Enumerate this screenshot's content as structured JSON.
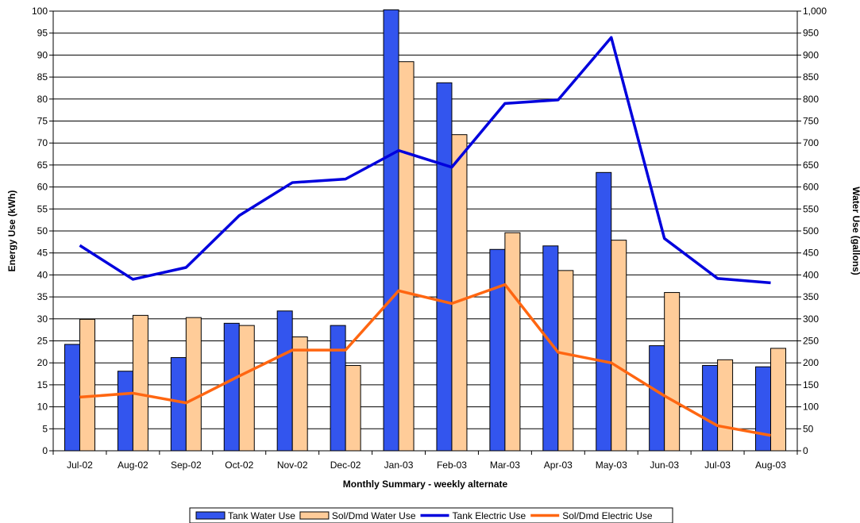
{
  "chart_data": {
    "type": "bar",
    "categories": [
      "Jul-02",
      "Aug-02",
      "Sep-02",
      "Oct-02",
      "Nov-02",
      "Dec-02",
      "Jan-03",
      "Feb-03",
      "Mar-03",
      "Apr-03",
      "May-03",
      "Jun-03",
      "Jul-03",
      "Aug-03"
    ],
    "xlabel": "Monthly Summary - weekly alternate",
    "ylabel_left": "Energy Use (kWh)",
    "ylabel_right": "Water Use (gallons)",
    "ylim_left": [
      0,
      100
    ],
    "ylim_right": [
      0,
      1000
    ],
    "yticks_left": [
      "0",
      "5",
      "10",
      "15",
      "20",
      "25",
      "30",
      "35",
      "40",
      "45",
      "50",
      "55",
      "60",
      "65",
      "70",
      "75",
      "80",
      "85",
      "90",
      "95",
      "100"
    ],
    "yticks_right": [
      "0",
      "50",
      "100",
      "150",
      "200",
      "250",
      "300",
      "350",
      "400",
      "450",
      "500",
      "550",
      "600",
      "650",
      "700",
      "750",
      "800",
      "850",
      "900",
      "950",
      "1,000"
    ],
    "grid": true,
    "legend_position": "bottom",
    "series": [
      {
        "name": "Tank Water Use",
        "type": "bar",
        "axis": "right",
        "color": "#3355ee",
        "values": [
          242,
          181,
          212,
          290,
          318,
          285,
          1003,
          837,
          458,
          466,
          633,
          239,
          194,
          191
        ]
      },
      {
        "name": "Sol/Dmd Water Use",
        "type": "bar",
        "axis": "right",
        "color": "#ffcc99",
        "values": [
          299,
          308,
          303,
          285,
          259,
          194,
          885,
          719,
          496,
          410,
          479,
          360,
          207,
          233
        ]
      },
      {
        "name": "Tank Electric Use",
        "type": "line",
        "axis": "left",
        "color": "#0000dd",
        "values": [
          46.7,
          39.0,
          41.7,
          53.5,
          61.0,
          61.8,
          68.3,
          64.5,
          79.0,
          79.8,
          94.0,
          48.3,
          39.2,
          38.2
        ]
      },
      {
        "name": "Sol/Dmd Electric Use",
        "type": "line",
        "axis": "left",
        "color": "#ff6611",
        "values": [
          12.2,
          13.1,
          10.9,
          17.0,
          22.9,
          22.9,
          36.4,
          33.5,
          37.8,
          22.4,
          20.0,
          12.5,
          5.7,
          3.5
        ]
      }
    ]
  }
}
